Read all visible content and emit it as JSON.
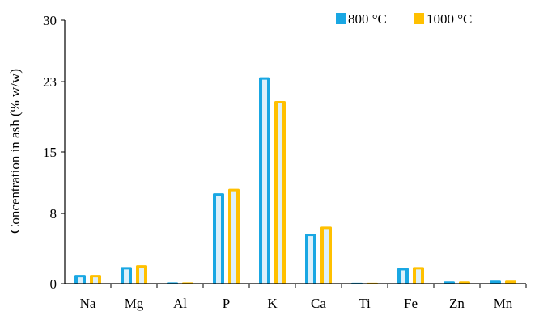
{
  "chart_data": {
    "type": "bar",
    "categories": [
      "Na",
      "Mg",
      "Al",
      "P",
      "K",
      "Ca",
      "Ti",
      "Fe",
      "Zn",
      "Mn"
    ],
    "series": [
      {
        "name": "800 °C",
        "values": [
          1.0,
          1.9,
          0.15,
          10.3,
          23.5,
          5.7,
          0.1,
          1.8,
          0.25,
          0.35
        ]
      },
      {
        "name": "1000 °C",
        "values": [
          1.0,
          2.1,
          0.15,
          10.8,
          20.8,
          6.5,
          0.1,
          1.9,
          0.25,
          0.35
        ]
      }
    ],
    "xlabel": "",
    "ylabel": "Concentration in ash (% w/w)",
    "ylim": [
      0,
      30
    ],
    "yticks": [
      "0",
      "8",
      "15",
      "23",
      "30"
    ],
    "grid": false,
    "legend_position": "top-right",
    "colors": {
      "800 °C": "#19a7e3",
      "1000 °C": "#ffc000",
      "highlight": "#ddf0fa"
    }
  }
}
